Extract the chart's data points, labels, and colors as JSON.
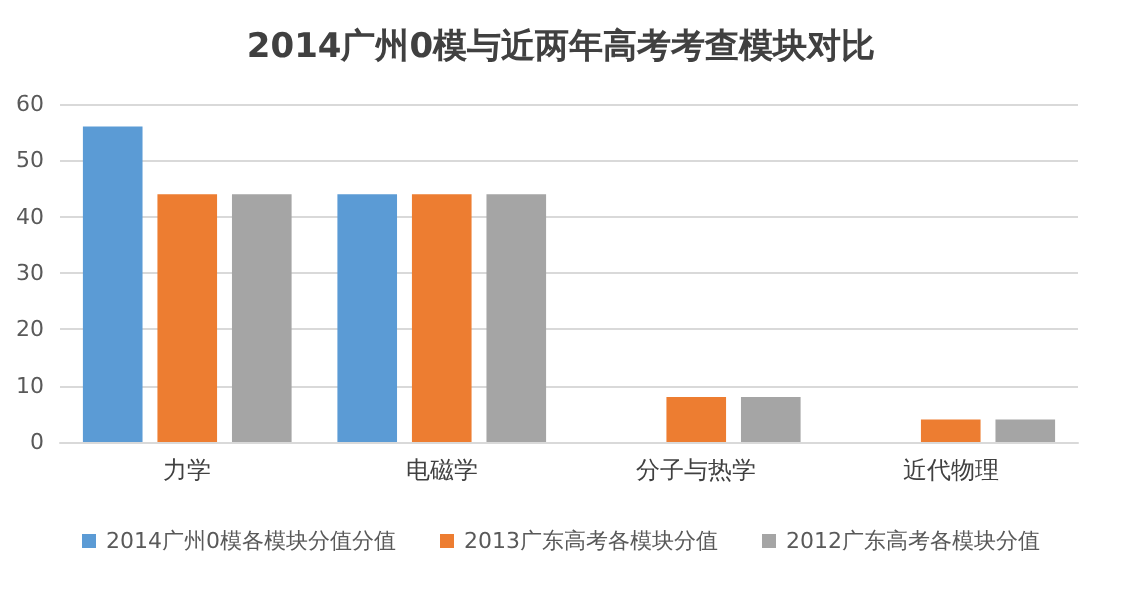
{
  "chart_data": {
    "type": "bar",
    "title": "2014广州0模与近两年高考考查模块对比",
    "categories": [
      "力学",
      "电磁学",
      "分子与热学",
      "近代物理"
    ],
    "series": [
      {
        "name": "2014广州0模各模块分值分值",
        "color": "#5b9bd5",
        "values": [
          56,
          44,
          0,
          0
        ]
      },
      {
        "name": "2013广东高考各模块分值",
        "color": "#ed7d31",
        "values": [
          44,
          44,
          8,
          4
        ]
      },
      {
        "name": "2012广东高考各模块分值",
        "color": "#a5a5a5",
        "values": [
          44,
          44,
          8,
          4
        ]
      }
    ],
    "ylim": [
      0,
      60
    ],
    "yticks": [
      0,
      10,
      20,
      30,
      40,
      50,
      60
    ],
    "grid": "y",
    "legend": "bottom"
  }
}
